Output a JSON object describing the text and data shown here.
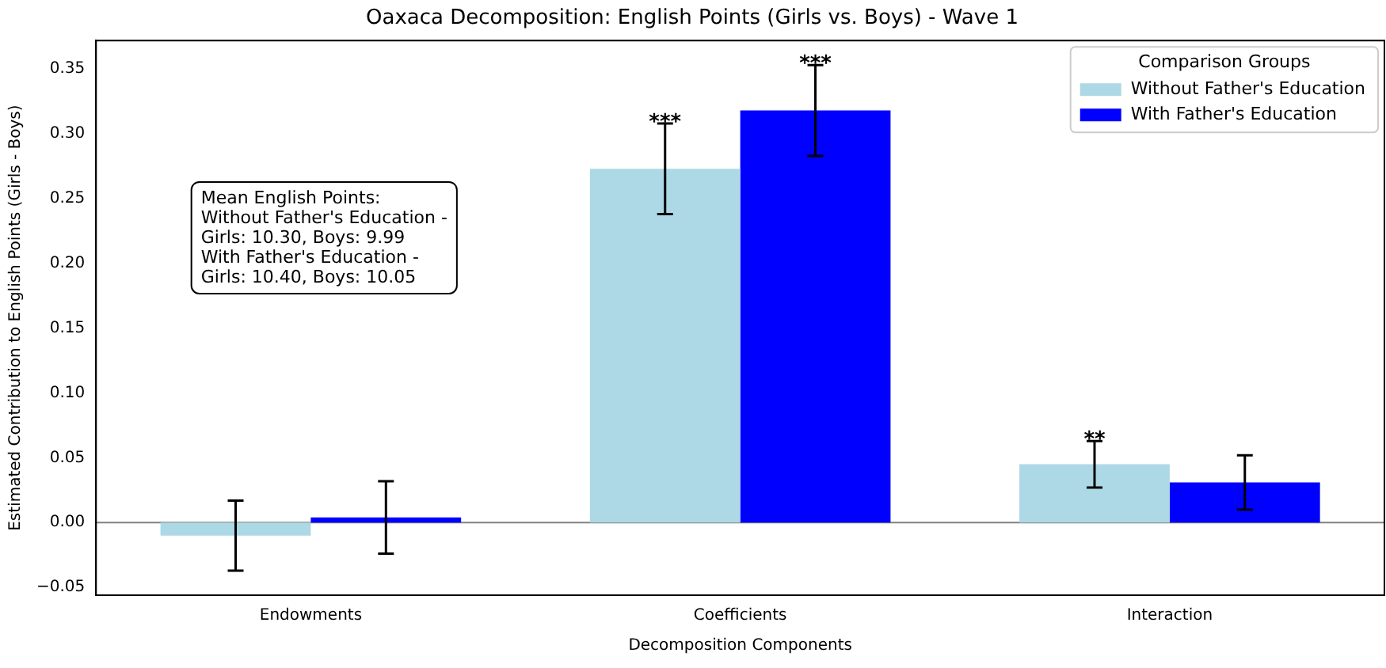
{
  "chart_data": {
    "type": "bar",
    "title": "Oaxaca Decomposition: English Points (Girls vs. Boys) - Wave 1",
    "xlabel": "Decomposition Components",
    "ylabel": "Estimated Contribution to English Points (Girls - Boys)",
    "legend_title": "Comparison Groups",
    "categories": [
      "Endowments",
      "Coefficients",
      "Interaction"
    ],
    "series": [
      {
        "name": "Without Father's Education",
        "color": "#add8e6",
        "values": [
          -0.01,
          0.273,
          0.045
        ],
        "errors": [
          0.027,
          0.035,
          0.018
        ]
      },
      {
        "name": "With Father's Education",
        "color": "#0000ff",
        "values": [
          0.004,
          0.318,
          0.031
        ],
        "errors": [
          0.028,
          0.035,
          0.021
        ]
      }
    ],
    "ylim": [
      -0.056,
      0.372
    ],
    "yticks": [
      {
        "value": -0.05,
        "label": "−0.05"
      },
      {
        "value": 0,
        "label": "0.00"
      },
      {
        "value": 0.05,
        "label": "0.05"
      },
      {
        "value": 0.1,
        "label": "0.10"
      },
      {
        "value": 0.15,
        "label": "0.15"
      },
      {
        "value": 0.2,
        "label": "0.20"
      },
      {
        "value": 0.25,
        "label": "0.25"
      },
      {
        "value": 0.3,
        "label": "0.30"
      },
      {
        "value": 0.35,
        "label": "0.35"
      }
    ],
    "ref_lines": [
      {
        "axis": "y",
        "value": 0,
        "color": "#808080"
      }
    ],
    "annotations": [
      "***",
      "***",
      "**",
      "Mean English Points:\nWithout Father's Education -\nGirls: 10.30, Boys: 9.99\nWith Father's Education -\nGirls: 10.40, Boys: 10.05"
    ],
    "grid": false,
    "legend": "top right"
  }
}
